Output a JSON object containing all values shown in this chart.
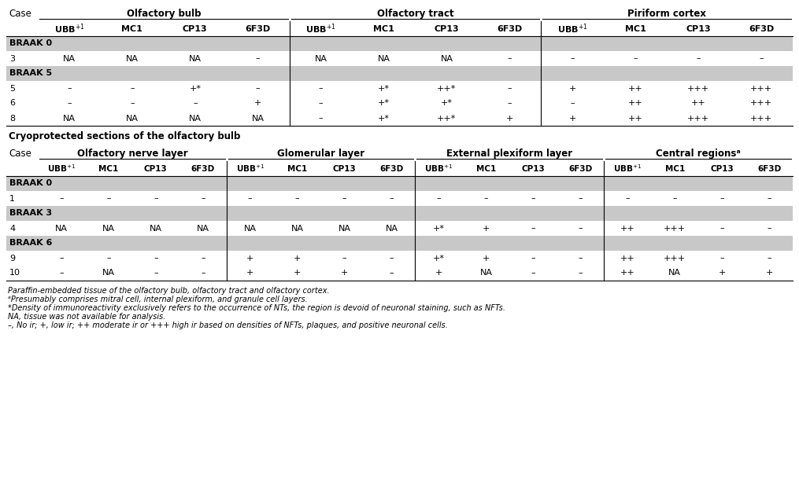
{
  "background_color": "#ffffff",
  "braak_bg": "#c8c8c8",
  "white": "#ffffff",
  "line_color": "#000000",
  "table1": {
    "col_groups": [
      {
        "label": "Olfactory bulb",
        "span": 4
      },
      {
        "label": "Olfactory tract",
        "span": 4
      },
      {
        "label": "Piriform cortex",
        "span": 4
      }
    ],
    "sub_headers": [
      "UBB+1",
      "MC1",
      "CP13",
      "6F3D"
    ],
    "rows": [
      {
        "type": "braak",
        "label": "BRAAK 0"
      },
      {
        "type": "data",
        "case": "3",
        "vals": [
          "NA",
          "NA",
          "NA",
          "–",
          "NA",
          "NA",
          "NA",
          "–",
          "–",
          "–",
          "–",
          "–"
        ]
      },
      {
        "type": "braak",
        "label": "BRAAK 5"
      },
      {
        "type": "data",
        "case": "5",
        "vals": [
          "–",
          "–",
          "+*",
          "–",
          "–",
          "+*",
          "++*",
          "–",
          "+",
          "++",
          "+++",
          "+++"
        ]
      },
      {
        "type": "data",
        "case": "6",
        "vals": [
          "–",
          "–",
          "–",
          "+",
          "–",
          "+*",
          "+*",
          "–",
          "–",
          "++",
          "++",
          "+++"
        ]
      },
      {
        "type": "data",
        "case": "8",
        "vals": [
          "NA",
          "NA",
          "NA",
          "NA",
          "–",
          "+*",
          "++*",
          "+",
          "+",
          "++",
          "+++",
          "+++"
        ]
      }
    ]
  },
  "cryo_title": "Cryoprotected sections of the olfactory bulb",
  "table2": {
    "col_groups": [
      {
        "label": "Olfactory nerve layer",
        "span": 4
      },
      {
        "label": "Glomerular layer",
        "span": 4
      },
      {
        "label": "External plexiform layer",
        "span": 4
      },
      {
        "label": "Central regionsᵃ",
        "span": 4
      }
    ],
    "sub_headers": [
      "UBB+1",
      "MC1",
      "CP13",
      "6F3D"
    ],
    "rows": [
      {
        "type": "braak",
        "label": "BRAAK 0"
      },
      {
        "type": "data",
        "case": "1",
        "vals": [
          "–",
          "–",
          "–",
          "–",
          "–",
          "–",
          "–",
          "–",
          "–",
          "–",
          "–",
          "–",
          "–",
          "–",
          "–",
          "–"
        ]
      },
      {
        "type": "braak",
        "label": "BRAAK 3"
      },
      {
        "type": "data",
        "case": "4",
        "vals": [
          "NA",
          "NA",
          "NA",
          "NA",
          "NA",
          "NA",
          "NA",
          "NA",
          "+*",
          "+",
          "–",
          "–",
          "++",
          "+++",
          "–",
          "–"
        ]
      },
      {
        "type": "braak",
        "label": "BRAAK 6"
      },
      {
        "type": "data",
        "case": "9",
        "vals": [
          "–",
          "–",
          "–",
          "–",
          "+",
          "+",
          "–",
          "–",
          "+*",
          "+",
          "–",
          "–",
          "++",
          "+++",
          "–",
          "–"
        ]
      },
      {
        "type": "data",
        "case": "10",
        "vals": [
          "–",
          "NA",
          "–",
          "–",
          "+",
          "+",
          "+",
          "–",
          "+",
          "NA",
          "–",
          "–",
          "++",
          "NA",
          "+",
          "+"
        ]
      }
    ]
  },
  "footnotes": [
    {
      "text": "Paraffin-embedded tissue of the olfactory bulb, olfactory tract and olfactory cortex.",
      "italic": true
    },
    {
      "text": "ᵃPresumably comprises mitral cell, internal plexiform, and granule cell layers.",
      "italic": true
    },
    {
      "text": "*Density of immunoreactivity exclusively refers to the occurrence of NTs, the region is devoid of neuronal staining, such as NFTs.",
      "italic": true
    },
    {
      "text": "NA, tissue was not available for analysis.",
      "italic": true
    },
    {
      "text": "–, No ir; +, low ir; ++ moderate ir or +++ high ir based on densities of NFTs, plaques, and positive neuronal cells.",
      "italic": true
    }
  ]
}
